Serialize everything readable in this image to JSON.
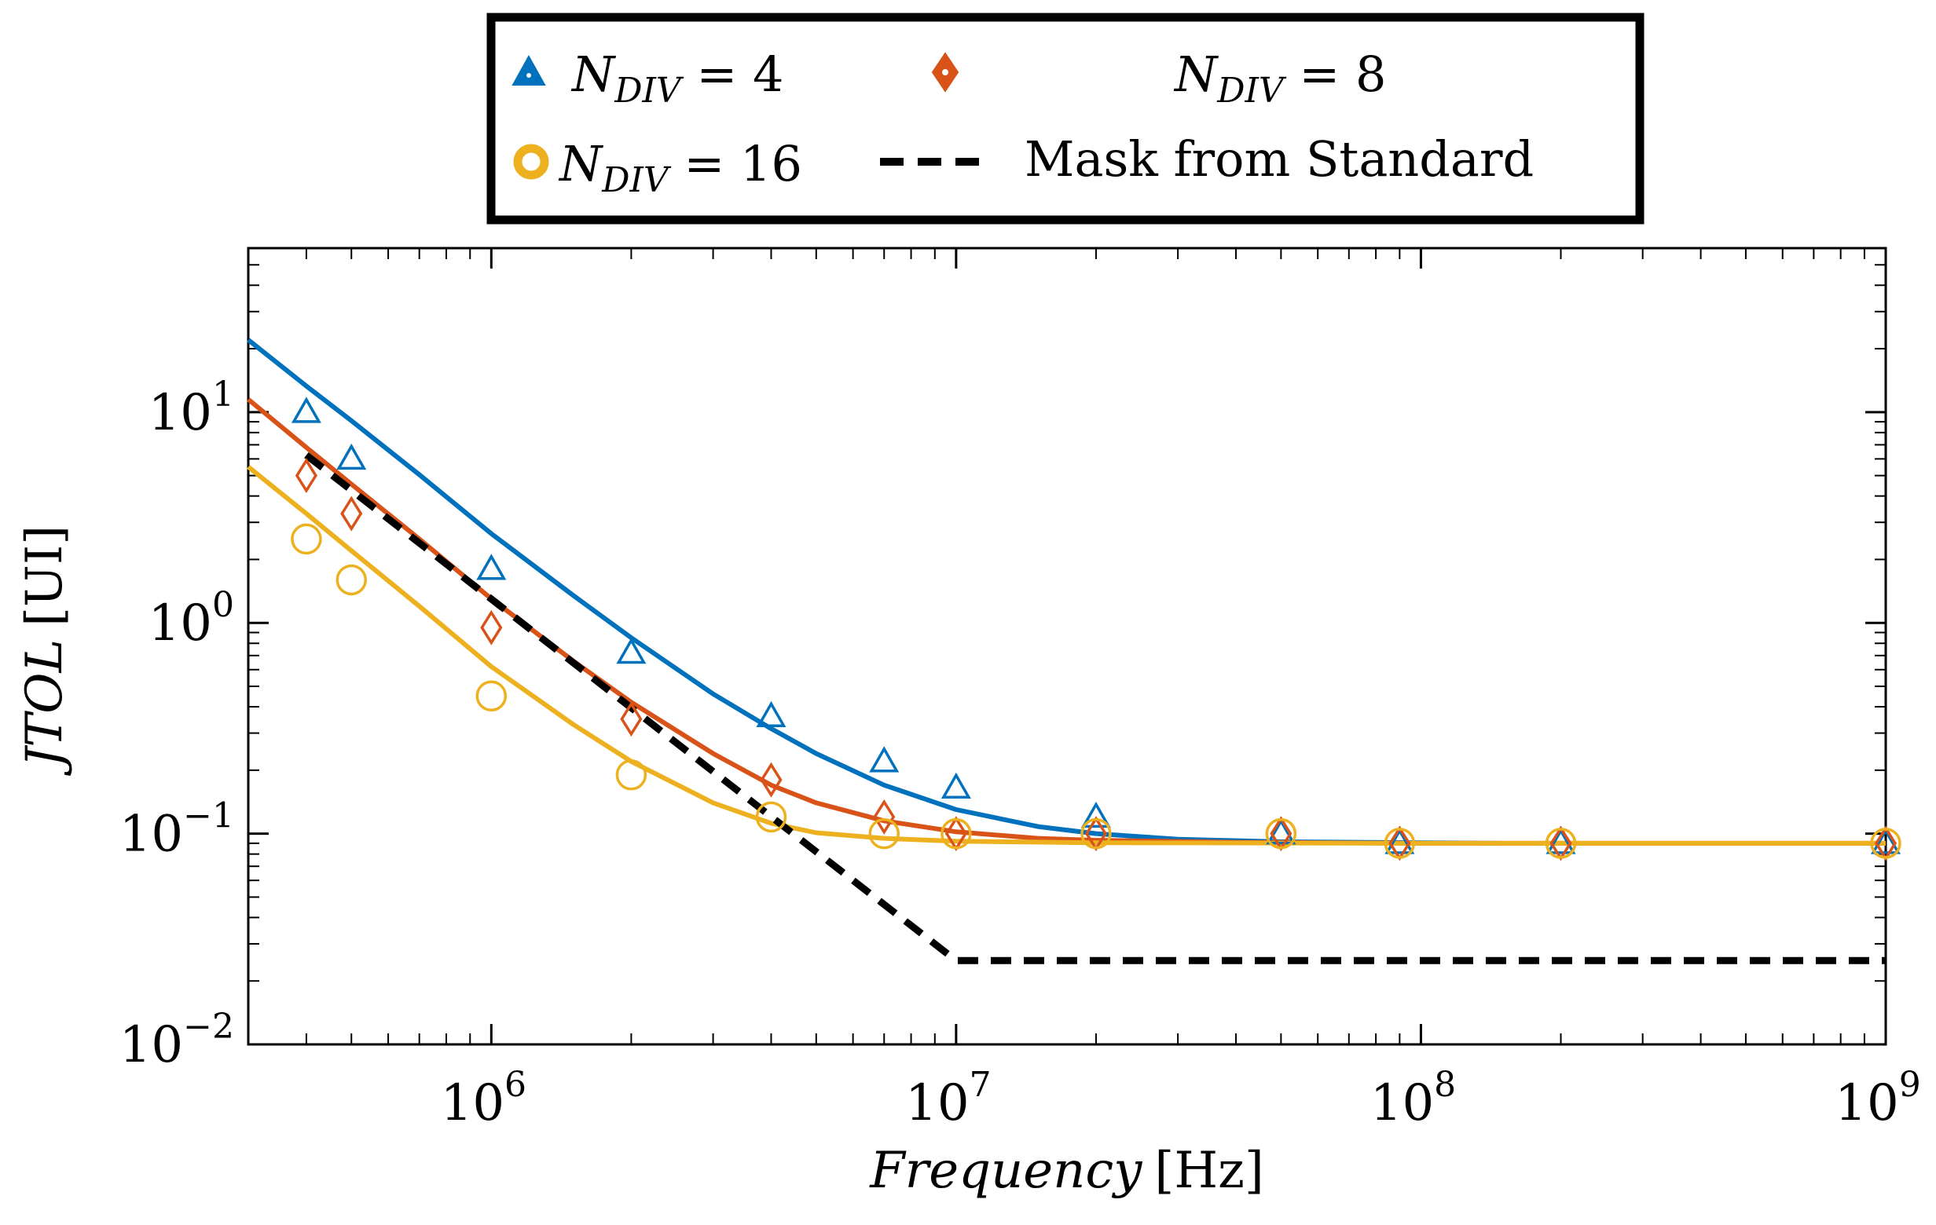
{
  "chart_data": {
    "type": "scatter",
    "title": "",
    "xlabel": "Frequency [Hz]",
    "xlabel_parts": {
      "variable": "Frequency",
      "unit": "[Hz]"
    },
    "ylabel": "JTOL [UI]",
    "ylabel_parts": {
      "variable": "JTOL",
      "unit": "[UI]"
    },
    "x_scale": "log",
    "y_scale": "log",
    "xlim": [
      300000,
      1000000000
    ],
    "ylim": [
      0.01,
      60
    ],
    "grid": false,
    "legend_position": "top, outside plot, framed",
    "x_ticks": [
      {
        "value": 1000000,
        "base": "10",
        "exp": "6"
      },
      {
        "value": 10000000,
        "base": "10",
        "exp": "7"
      },
      {
        "value": 100000000,
        "base": "10",
        "exp": "8"
      },
      {
        "value": 1000000000,
        "base": "10",
        "exp": "9"
      }
    ],
    "y_ticks": [
      {
        "value": 10,
        "base": "10",
        "exp": "1"
      },
      {
        "value": 1,
        "base": "10",
        "exp": "0"
      },
      {
        "value": 0.1,
        "base": "10",
        "exp": "−1"
      },
      {
        "value": 0.01,
        "base": "10",
        "exp": "−2"
      }
    ],
    "series": [
      {
        "name": "N_DIV = 4",
        "legend_label": {
          "symbol": "N",
          "sub": "DIV",
          "rest": " = 4"
        },
        "color": "#0072BD",
        "marker": "triangle",
        "points": [
          [
            400000,
            10.0
          ],
          [
            500000,
            6.0
          ],
          [
            1000000,
            1.8
          ],
          [
            2000000,
            0.72
          ],
          [
            4000000,
            0.36
          ],
          [
            7000000,
            0.22
          ],
          [
            10000000,
            0.165
          ],
          [
            20000000,
            0.12
          ],
          [
            50000000,
            0.1
          ],
          [
            90000000,
            0.09
          ],
          [
            200000000,
            0.09
          ],
          [
            1000000000,
            0.09
          ]
        ],
        "fit_curve": [
          [
            300000,
            22.0
          ],
          [
            400000,
            13.3
          ],
          [
            500000,
            9.1
          ],
          [
            700000,
            5.05
          ],
          [
            1000000,
            2.65
          ],
          [
            1500000,
            1.35
          ],
          [
            2000000,
            0.85
          ],
          [
            3000000,
            0.46
          ],
          [
            4000000,
            0.315
          ],
          [
            5000000,
            0.24
          ],
          [
            7000000,
            0.17
          ],
          [
            10000000,
            0.13
          ],
          [
            15000000,
            0.108
          ],
          [
            20000000,
            0.1
          ],
          [
            30000000,
            0.094
          ],
          [
            50000000,
            0.0915
          ],
          [
            100000000,
            0.0905
          ],
          [
            150000000,
            0.09
          ]
        ]
      },
      {
        "name": "N_DIV = 8",
        "legend_label": {
          "symbol": "N",
          "sub": "DIV",
          "rest": " = 8"
        },
        "color": "#D95319",
        "marker": "diamond",
        "points": [
          [
            400000,
            5.0
          ],
          [
            500000,
            3.3
          ],
          [
            1000000,
            0.95
          ],
          [
            2000000,
            0.35
          ],
          [
            4000000,
            0.18
          ],
          [
            7000000,
            0.12
          ],
          [
            10000000,
            0.1
          ],
          [
            20000000,
            0.1
          ],
          [
            50000000,
            0.1
          ],
          [
            90000000,
            0.09
          ],
          [
            200000000,
            0.09
          ],
          [
            1000000000,
            0.09
          ]
        ],
        "fit_curve": [
          [
            300000,
            11.5
          ],
          [
            400000,
            6.8
          ],
          [
            500000,
            4.55
          ],
          [
            700000,
            2.5
          ],
          [
            1000000,
            1.3
          ],
          [
            1500000,
            0.66
          ],
          [
            2000000,
            0.42
          ],
          [
            3000000,
            0.24
          ],
          [
            4000000,
            0.17
          ],
          [
            5000000,
            0.14
          ],
          [
            7000000,
            0.115
          ],
          [
            10000000,
            0.102
          ],
          [
            15000000,
            0.095
          ],
          [
            20000000,
            0.093
          ],
          [
            40000000,
            0.091
          ],
          [
            100000000,
            0.09
          ],
          [
            1000000000,
            0.09
          ]
        ]
      },
      {
        "name": "N_DIV = 16",
        "legend_label": {
          "symbol": "N",
          "sub": "DIV",
          "rest": " = 16"
        },
        "color": "#EDB120",
        "marker": "circle",
        "points": [
          [
            400000,
            2.5
          ],
          [
            500000,
            1.6
          ],
          [
            1000000,
            0.45
          ],
          [
            2000000,
            0.19
          ],
          [
            4000000,
            0.12
          ],
          [
            7000000,
            0.1
          ],
          [
            10000000,
            0.1
          ],
          [
            20000000,
            0.1
          ],
          [
            50000000,
            0.1
          ],
          [
            90000000,
            0.09
          ],
          [
            200000000,
            0.09
          ],
          [
            1000000000,
            0.09
          ]
        ],
        "fit_curve": [
          [
            300000,
            5.5
          ],
          [
            400000,
            3.3
          ],
          [
            500000,
            2.2
          ],
          [
            700000,
            1.2
          ],
          [
            1000000,
            0.62
          ],
          [
            1500000,
            0.33
          ],
          [
            2000000,
            0.22
          ],
          [
            3000000,
            0.14
          ],
          [
            4000000,
            0.112
          ],
          [
            5000000,
            0.101
          ],
          [
            7000000,
            0.095
          ],
          [
            10000000,
            0.092
          ],
          [
            20000000,
            0.0905
          ],
          [
            100000000,
            0.09
          ],
          [
            1000000000,
            0.09
          ]
        ]
      },
      {
        "name": "Mask from Standard",
        "legend_label": {
          "rest": "Mask from Standard"
        },
        "color": "#000000",
        "marker": "dashed-line",
        "line": [
          [
            400000,
            6.25
          ],
          [
            10000000,
            0.025
          ],
          [
            1000000000,
            0.025
          ]
        ]
      }
    ]
  }
}
